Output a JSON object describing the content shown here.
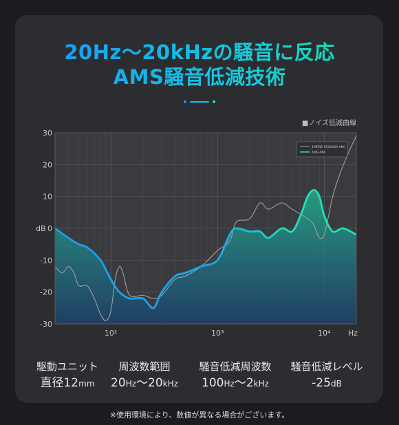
{
  "title_line1": "20Hz〜20kHzの騒音に反応",
  "title_line2": "AMS騒音低減技術",
  "chart_data": {
    "type": "line",
    "legend_title": "■ノイズ低減曲線",
    "legend": [
      "1MORE E1004BA ANC",
      "AMS ANC"
    ],
    "ylabel": "dB",
    "ylim": [
      -30,
      30
    ],
    "yticks": [
      30,
      20,
      10,
      0,
      -10,
      -20,
      -30
    ],
    "xscale": "log",
    "xlim": [
      30,
      20000
    ],
    "xticks": [
      {
        "value": 100,
        "label": "10²"
      },
      {
        "value": 1000,
        "label": "10³"
      },
      {
        "value": 10000,
        "label": "10⁴"
      }
    ],
    "xunit": "Hz",
    "series": [
      {
        "name": "1MORE E1004BA ANC",
        "color": "#a0a0a0",
        "x": [
          30,
          35,
          40,
          45,
          50,
          60,
          70,
          80,
          90,
          100,
          110,
          120,
          130,
          150,
          200,
          250,
          300,
          400,
          500,
          700,
          1000,
          1300,
          1500,
          2000,
          2500,
          3000,
          4000,
          5000,
          7000,
          8000,
          9000,
          10000,
          11000,
          12000,
          14000,
          17000,
          20000
        ],
        "y": [
          -12,
          -14,
          -12,
          -14,
          -18,
          -18,
          -22,
          -27,
          -29,
          -26,
          -16,
          -12,
          -14,
          -21,
          -21,
          -22,
          -21,
          -16,
          -15,
          -12,
          -7,
          -4,
          2,
          3,
          8,
          6,
          8,
          6,
          3,
          1,
          -3,
          -2,
          4,
          10,
          17,
          24,
          29
        ]
      },
      {
        "name": "AMS ANC",
        "color": "#22e0b6",
        "x": [
          30,
          40,
          50,
          60,
          80,
          100,
          120,
          150,
          200,
          250,
          300,
          400,
          500,
          700,
          1000,
          1300,
          1500,
          2000,
          2500,
          3000,
          4000,
          5000,
          6000,
          7000,
          8000,
          9000,
          10000,
          12000,
          15000,
          20000
        ],
        "y": [
          0,
          -3,
          -5,
          -6,
          -10,
          -16,
          -20,
          -22,
          -22,
          -25,
          -20,
          -15,
          -14,
          -12,
          -10,
          -2,
          0,
          -1,
          -1,
          -3,
          0,
          -1,
          4,
          10,
          12,
          10,
          4,
          -1,
          0,
          -2
        ]
      }
    ]
  },
  "specs": [
    {
      "label": "駆動ユニット",
      "value_pre": "直径12",
      "value_unit": "mm"
    },
    {
      "label": "周波数範囲",
      "value_pre": "20",
      "value_unit": "Hz",
      "value_mid": "〜20",
      "value_unit2": "kHz"
    },
    {
      "label": "騒音低減周波数",
      "value_pre": "100",
      "value_unit": "Hz",
      "value_mid": "〜2",
      "value_unit2": "kHz"
    },
    {
      "label": "騒音低減レベル",
      "value_pre": "-25",
      "value_unit": "dB"
    }
  ],
  "footnote": "※使用環境により、数値が異なる場合がございます。"
}
